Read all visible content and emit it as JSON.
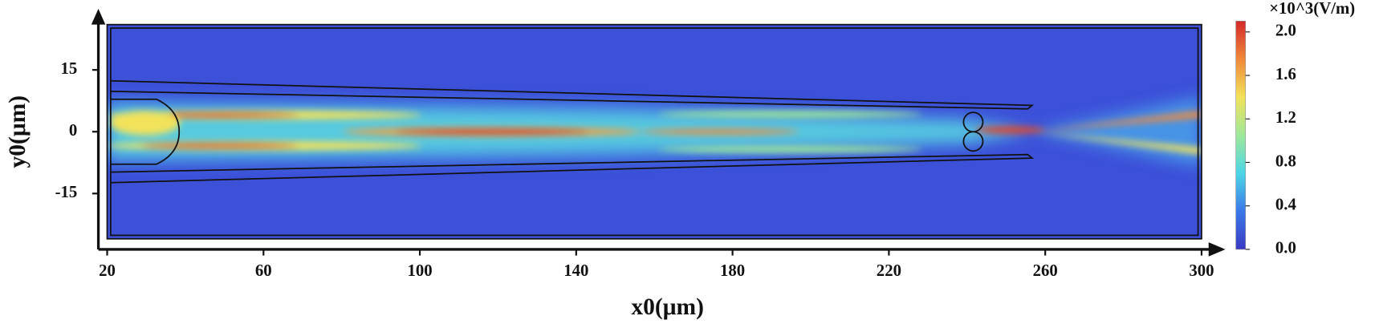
{
  "chart_data": {
    "type": "heatmap",
    "xlabel": "x0(μm)",
    "ylabel": "y0(μm)",
    "xlim": [
      20,
      300
    ],
    "xticks": [
      20,
      60,
      100,
      140,
      180,
      220,
      260,
      300
    ],
    "ylim": [
      -26,
      26
    ],
    "yticks": [
      -15,
      0,
      15
    ],
    "colorbar": {
      "label": "×10^3(V/m)",
      "lim": [
        0,
        2.1
      ],
      "ticks": [
        {
          "value": 0,
          "label": "0.0"
        },
        0.4,
        0.8,
        1.2,
        1.6,
        {
          "value": 2,
          "label": "2.0"
        }
      ],
      "colors": [
        "#3a3ac4",
        "#3a78e8",
        "#4ed6e6",
        "#9ee89a",
        "#f2e25a",
        "#f0893a",
        "#d42a2a"
      ]
    }
  }
}
